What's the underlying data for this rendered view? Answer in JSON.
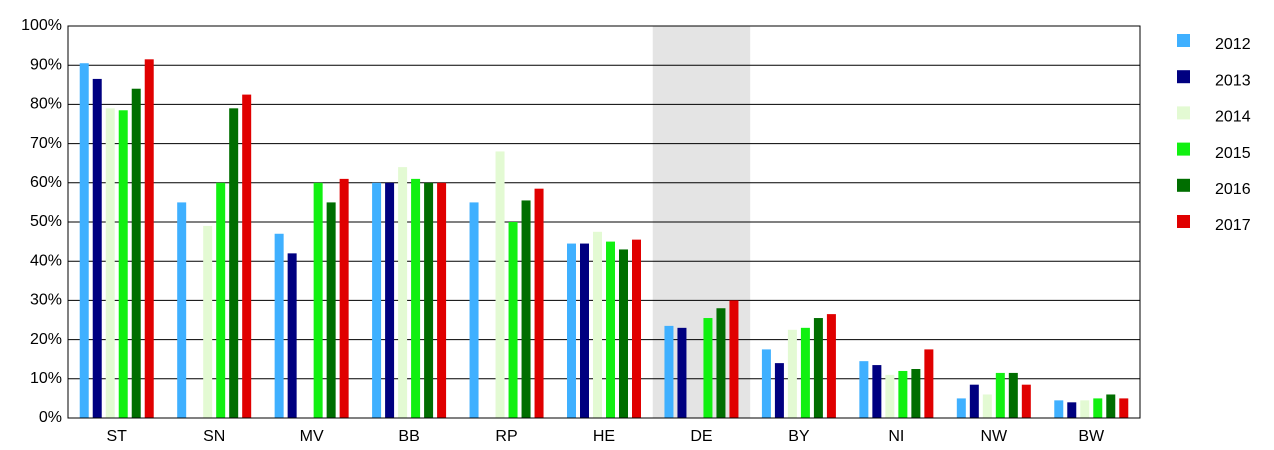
{
  "chart_data": {
    "type": "bar",
    "categories": [
      "ST",
      "SN",
      "MV",
      "BB",
      "RP",
      "HE",
      "DE",
      "BY",
      "NI",
      "NW",
      "BW"
    ],
    "series": [
      {
        "name": "2012",
        "color": "#3fb0ff",
        "values": [
          90.5,
          55,
          47,
          60,
          55,
          44.5,
          23.5,
          17.5,
          14.5,
          5,
          4.5
        ]
      },
      {
        "name": "2013",
        "color": "#000080",
        "values": [
          86.5,
          null,
          42,
          60,
          null,
          44.5,
          23,
          14,
          13.5,
          8.5,
          4
        ]
      },
      {
        "name": "2014",
        "color": "#e3fad3",
        "values": [
          79,
          49,
          null,
          64,
          68,
          47.5,
          null,
          22.5,
          11,
          6,
          4.5
        ]
      },
      {
        "name": "2015",
        "color": "#11f011",
        "values": [
          78.5,
          60,
          60,
          61,
          50,
          45,
          25.5,
          23,
          12,
          11.5,
          5
        ]
      },
      {
        "name": "2016",
        "color": "#006e00",
        "values": [
          84,
          79,
          55,
          60,
          55.5,
          43,
          28,
          25.5,
          12.5,
          11.5,
          6
        ]
      },
      {
        "name": "2017",
        "color": "#e00000",
        "values": [
          91.5,
          82.5,
          61,
          60,
          58.5,
          45.5,
          30,
          26.5,
          17.5,
          8.5,
          5
        ]
      }
    ],
    "ylim": [
      0,
      100
    ],
    "yticks": [
      {
        "value": 0,
        "label": "0%"
      },
      {
        "value": 10,
        "label": "10%"
      },
      {
        "value": 20,
        "label": "20%"
      },
      {
        "value": 30,
        "label": "30%"
      },
      {
        "value": 40,
        "label": "40%"
      },
      {
        "value": 50,
        "label": "50%"
      },
      {
        "value": 60,
        "label": "60%"
      },
      {
        "value": 70,
        "label": "70%"
      },
      {
        "value": 80,
        "label": "80%"
      },
      {
        "value": 90,
        "label": "90%"
      },
      {
        "value": 100,
        "label": "100%"
      }
    ],
    "grid": true,
    "highlight": "DE",
    "legend": "right"
  }
}
